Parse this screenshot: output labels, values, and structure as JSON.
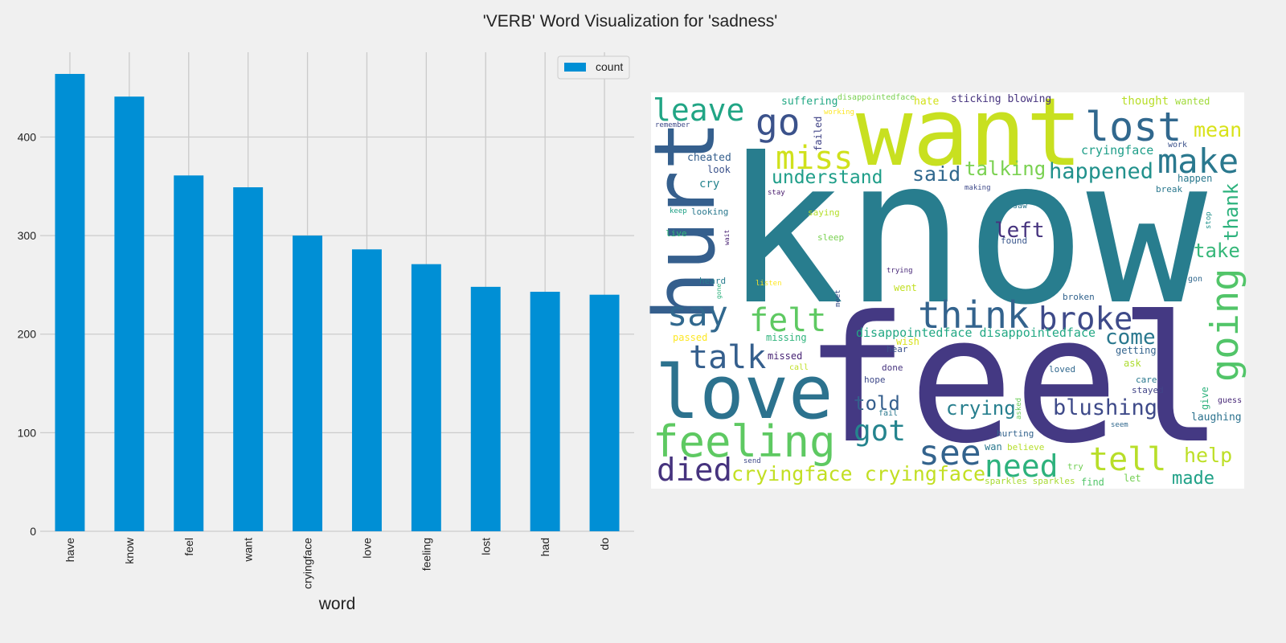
{
  "title": "'VERB' Word Visualization for 'sadness'",
  "chart_data": [
    {
      "type": "bar",
      "xlabel": "word",
      "categories": [
        "have",
        "know",
        "feel",
        "want",
        "cryingface",
        "love",
        "feeling",
        "lost",
        "had",
        "do"
      ],
      "series": [
        {
          "name": "count",
          "color": "#008fd5",
          "values": [
            464,
            441,
            361,
            349,
            300,
            286,
            271,
            248,
            243,
            240
          ]
        }
      ],
      "ylim": [
        0,
        486
      ],
      "yticks": [
        0,
        100,
        200,
        300,
        400
      ],
      "grid": true,
      "legend": "upper right"
    },
    {
      "type": "wordcloud",
      "words": [
        "know",
        "feel",
        "want",
        "love",
        "hurt",
        "feeling",
        "lost",
        "leave",
        "go",
        "miss",
        "make",
        "mean",
        "happened",
        "understand",
        "said",
        "talking",
        "cheated",
        "look",
        "cry",
        "looking",
        "keep",
        "live",
        "stay",
        "making",
        "saw",
        "saying",
        "sleep",
        "found",
        "left",
        "take",
        "thank",
        "going",
        "stop",
        "happen",
        "break",
        "cryingface",
        "work",
        "thought",
        "wanted",
        "sticking blowing",
        "hate",
        "disappointedface",
        "working",
        "suffering",
        "remember",
        "failed",
        "wait",
        "say",
        "felt",
        "talk",
        "think",
        "broke",
        "come",
        "heard",
        "listen",
        "gone",
        "meet",
        "trying",
        "went",
        "broken",
        "gon",
        "passed",
        "missing",
        "disappointedface disappointedface",
        "wish",
        "hear",
        "missed",
        "getting",
        "ask",
        "call",
        "done",
        "hope",
        "care",
        "loved",
        "stayed",
        "told",
        "crying",
        "blushing",
        "give",
        "guess",
        "laughing",
        "fail",
        "asked",
        "seem",
        "got",
        "hurting",
        "see",
        "wan",
        "believe",
        "tell",
        "help",
        "need",
        "died",
        "cryingface cryingface",
        "send",
        "try",
        "made",
        "sparkles sparkles",
        "find",
        "let"
      ]
    }
  ]
}
